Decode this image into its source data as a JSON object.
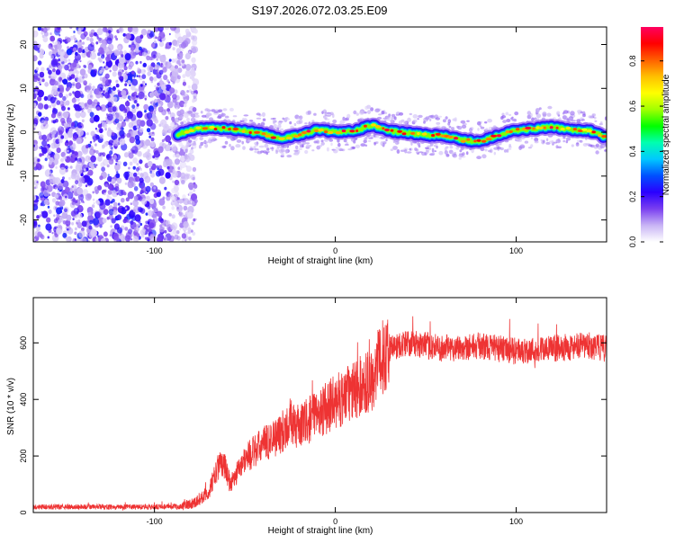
{
  "title": "S197.2026.072.03.25.E09",
  "chart_data": [
    {
      "type": "heatmap",
      "title": "S197.2026.072.03.25.E09",
      "xlabel": "Height of straight line (km)",
      "ylabel": "Frequency (Hz)",
      "xlim": [
        -167,
        150
      ],
      "ylim": [
        -25,
        24
      ],
      "xticks": [
        -100,
        0,
        100
      ],
      "xtick_labels": [
        "-100",
        "0",
        "100"
      ],
      "yticks": [
        -20,
        -10,
        0,
        10,
        20
      ],
      "ytick_labels": [
        "-20",
        "-10",
        "0",
        "10",
        "20"
      ],
      "noise_region_km": [
        -167,
        -83
      ],
      "signal_start_km": -87,
      "ridge": {
        "x_km": [
          -87,
          -80,
          -70,
          -60,
          -50,
          -40,
          -30,
          -20,
          -10,
          0,
          10,
          20,
          30,
          40,
          50,
          60,
          70,
          80,
          90,
          100,
          110,
          120,
          130,
          140,
          150
        ],
        "freq_hz": [
          -0.5,
          0.5,
          1.0,
          0.8,
          0.3,
          -0.4,
          -1.4,
          -0.7,
          0.6,
          0.0,
          0.2,
          1.6,
          0.3,
          -0.2,
          -0.6,
          -0.8,
          -1.8,
          -2.1,
          -0.6,
          0.4,
          0.8,
          1.2,
          0.6,
          0.4,
          -1.2
        ]
      },
      "colorbar": {
        "label": "Normalized spectral amplitude",
        "range": [
          0,
          0.95
        ],
        "ticks": [
          0.0,
          0.2,
          0.4,
          0.6,
          0.8
        ],
        "tick_labels": [
          "0.0",
          "0.2",
          "0.4",
          "0.6",
          "0.8"
        ],
        "colors": [
          "#ffffff",
          "#c8b4f5",
          "#7a3ff0",
          "#2a00ff",
          "#0050ff",
          "#00c8ff",
          "#00ffb0",
          "#00ff00",
          "#a0ff00",
          "#ffff00",
          "#ffc000",
          "#ff6000",
          "#ff0000",
          "#ff0060"
        ]
      }
    },
    {
      "type": "line",
      "xlabel": "Height of straight line (km)",
      "ylabel": "SNR (10 * v/v)",
      "xlim": [
        -167,
        150
      ],
      "ylim": [
        0,
        760
      ],
      "xticks": [
        -100,
        0,
        100
      ],
      "xtick_labels": [
        "-100",
        "0",
        "100"
      ],
      "yticks": [
        0,
        200,
        400,
        600
      ],
      "ytick_labels": [
        "0",
        "200",
        "400",
        "600"
      ],
      "color": "#ee3333",
      "series": [
        {
          "name": "SNR",
          "x": [
            -167,
            -100,
            -85,
            -78,
            -70,
            -65,
            -62,
            -58,
            -50,
            -40,
            -30,
            -25,
            -20,
            -10,
            0,
            10,
            20,
            25,
            30,
            40,
            60,
            80,
            100,
            120,
            140,
            150
          ],
          "values": [
            20,
            20,
            22,
            35,
            70,
            160,
            180,
            100,
            190,
            240,
            280,
            320,
            300,
            350,
            390,
            430,
            470,
            540,
            580,
            600,
            580,
            590,
            570,
            580,
            590,
            580
          ]
        }
      ]
    }
  ]
}
